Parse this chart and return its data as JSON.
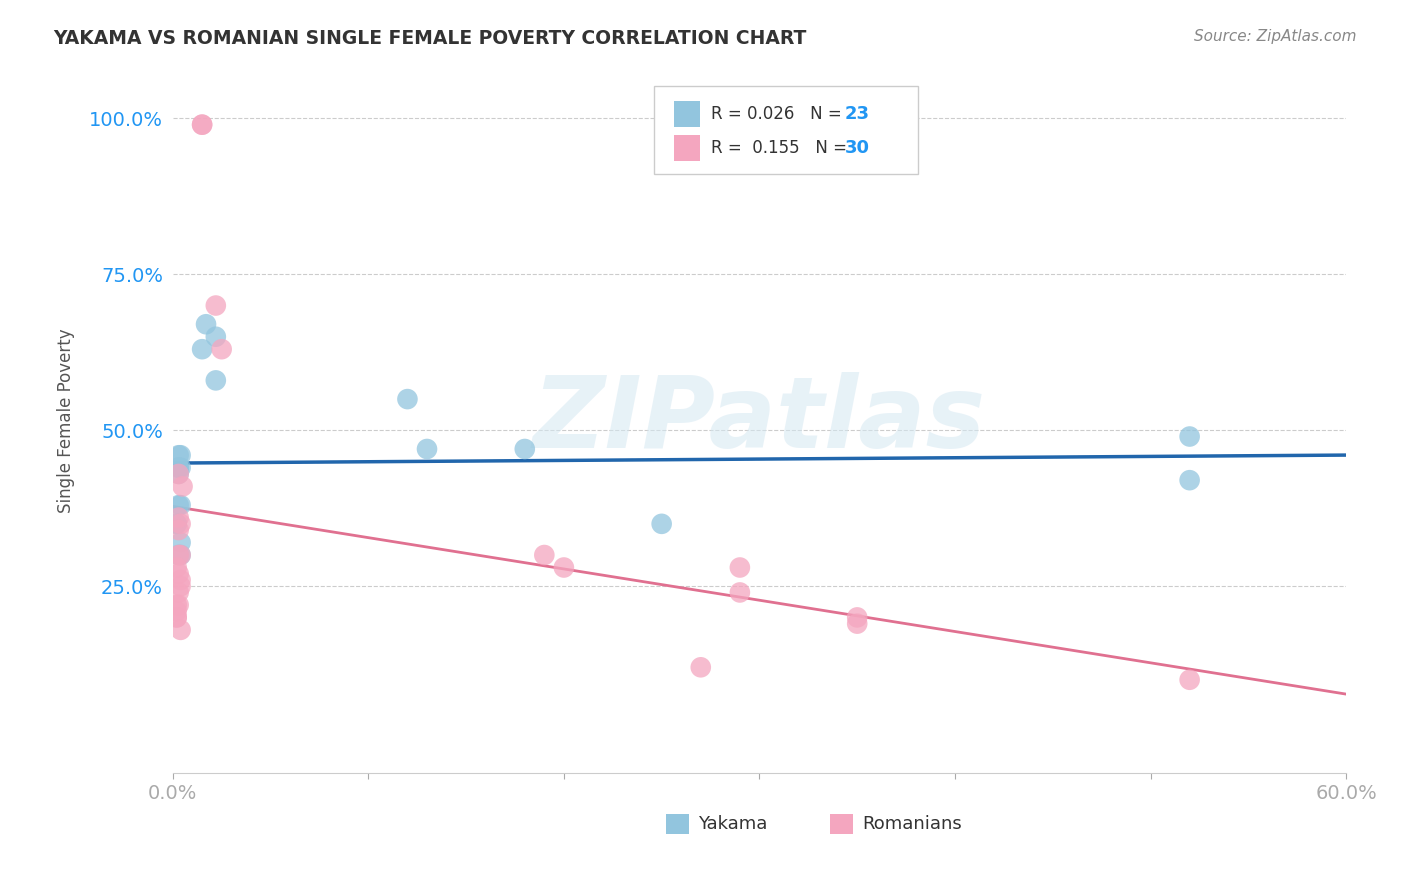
{
  "title": "YAKAMA VS ROMANIAN SINGLE FEMALE POVERTY CORRELATION CHART",
  "source": "Source: ZipAtlas.com",
  "ylabel": "Single Female Poverty",
  "xlim": [
    0.0,
    0.6
  ],
  "ylim": [
    -0.05,
    1.08
  ],
  "yticks": [
    0.25,
    0.5,
    0.75,
    1.0
  ],
  "ytick_labels": [
    "25.0%",
    "50.0%",
    "75.0%",
    "100.0%"
  ],
  "xticks": [
    0.0,
    0.1,
    0.2,
    0.3,
    0.4,
    0.5,
    0.6
  ],
  "xtick_labels": [
    "0.0%",
    "",
    "",
    "",
    "",
    "",
    "60.0%"
  ],
  "legend_r_yakama": "0.026",
  "legend_n_yakama": "23",
  "legend_r_romanian": "0.155",
  "legend_n_romanian": "30",
  "yakama_color": "#92c5de",
  "romanian_color": "#f4a6bf",
  "trend_yakama_color": "#2166ac",
  "trend_romanian_solid_color": "#e07090",
  "trend_dashed_color": "#b0b0b0",
  "watermark": "ZIPatlas",
  "yakama_x": [
    0.017,
    0.022,
    0.015,
    0.022,
    0.003,
    0.004,
    0.003,
    0.004,
    0.003,
    0.003,
    0.003,
    0.004,
    0.002,
    0.002,
    0.004,
    0.004,
    0.003,
    0.12,
    0.18,
    0.13,
    0.25,
    0.52,
    0.52
  ],
  "yakama_y": [
    0.67,
    0.65,
    0.63,
    0.58,
    0.46,
    0.46,
    0.44,
    0.44,
    0.44,
    0.43,
    0.38,
    0.38,
    0.35,
    0.35,
    0.32,
    0.3,
    0.3,
    0.55,
    0.47,
    0.47,
    0.35,
    0.49,
    0.42
  ],
  "romanian_x": [
    0.015,
    0.015,
    0.022,
    0.025,
    0.003,
    0.005,
    0.003,
    0.004,
    0.003,
    0.003,
    0.004,
    0.002,
    0.003,
    0.004,
    0.004,
    0.003,
    0.002,
    0.002,
    0.002,
    0.002,
    0.003,
    0.004,
    0.19,
    0.2,
    0.29,
    0.29,
    0.35,
    0.35,
    0.52,
    0.27
  ],
  "romanian_y": [
    0.99,
    0.99,
    0.7,
    0.63,
    0.43,
    0.41,
    0.36,
    0.35,
    0.34,
    0.3,
    0.3,
    0.28,
    0.27,
    0.26,
    0.25,
    0.24,
    0.22,
    0.21,
    0.2,
    0.2,
    0.22,
    0.18,
    0.3,
    0.28,
    0.28,
    0.24,
    0.2,
    0.19,
    0.1,
    0.12
  ]
}
